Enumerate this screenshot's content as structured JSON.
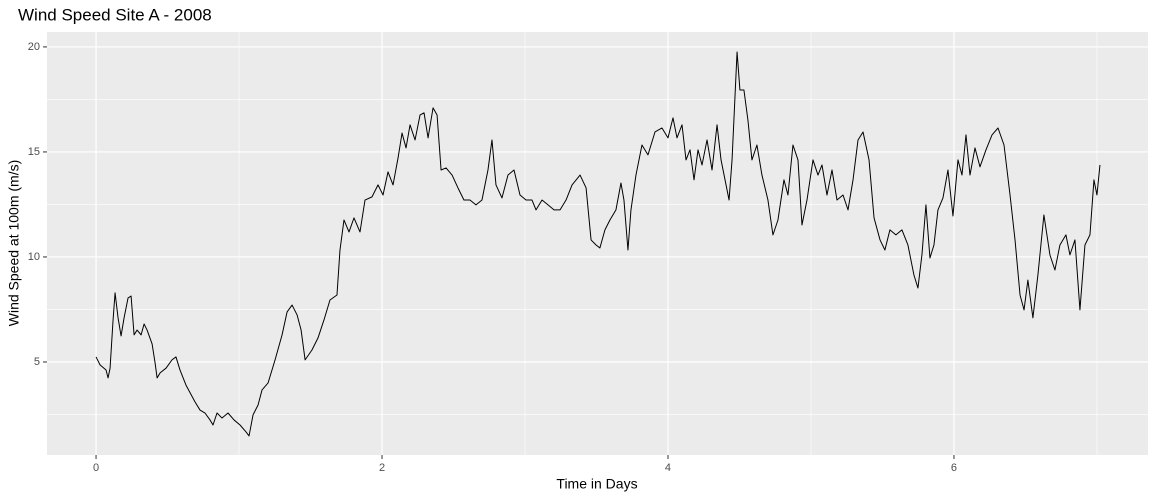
{
  "chart_data": {
    "type": "line",
    "title": "Wind Speed Site A - 2008",
    "x_label": "Time in Days",
    "y_label": "Wind Speed at 100m (m/s)",
    "color": "#000000",
    "grid": true,
    "xlim": [
      -0.343,
      7.357
    ],
    "ylim": [
      0.571,
      20.71
    ],
    "xticks": [
      0,
      2,
      4,
      6
    ],
    "yticks": [
      5,
      10,
      15,
      20
    ],
    "x": [
      0,
      0.028,
      0.07,
      0.084,
      0.098,
      0.119,
      0.133,
      0.154,
      0.175,
      0.196,
      0.224,
      0.245,
      0.266,
      0.287,
      0.315,
      0.336,
      0.357,
      0.392,
      0.413,
      0.427,
      0.448,
      0.49,
      0.531,
      0.559,
      0.587,
      0.629,
      0.692,
      0.727,
      0.762,
      0.797,
      0.818,
      0.846,
      0.881,
      0.923,
      0.965,
      1.007,
      1.049,
      1.07,
      1.098,
      1.133,
      1.161,
      1.203,
      1.252,
      1.301,
      1.336,
      1.371,
      1.406,
      1.434,
      1.462,
      1.51,
      1.552,
      1.594,
      1.636,
      1.685,
      1.706,
      1.734,
      1.769,
      1.804,
      1.846,
      1.881,
      1.93,
      1.972,
      2.007,
      2.042,
      2.077,
      2.112,
      2.14,
      2.168,
      2.196,
      2.231,
      2.266,
      2.294,
      2.322,
      2.357,
      2.385,
      2.413,
      2.448,
      2.49,
      2.531,
      2.573,
      2.615,
      2.657,
      2.699,
      2.741,
      2.769,
      2.797,
      2.839,
      2.881,
      2.923,
      2.965,
      3.007,
      3.049,
      3.077,
      3.119,
      3.161,
      3.203,
      3.245,
      3.287,
      3.329,
      3.385,
      3.427,
      3.462,
      3.497,
      3.524,
      3.559,
      3.594,
      3.636,
      3.671,
      3.692,
      3.72,
      3.741,
      3.776,
      3.818,
      3.86,
      3.909,
      3.958,
      4.0,
      4.035,
      4.063,
      4.098,
      4.126,
      4.154,
      4.182,
      4.21,
      4.238,
      4.273,
      4.308,
      4.343,
      4.371,
      4.399,
      4.427,
      4.448,
      4.483,
      4.503,
      4.531,
      4.559,
      4.587,
      4.622,
      4.657,
      4.699,
      4.734,
      4.769,
      4.811,
      4.839,
      4.874,
      4.909,
      4.937,
      4.972,
      5.014,
      5.049,
      5.077,
      5.112,
      5.147,
      5.182,
      5.224,
      5.259,
      5.294,
      5.329,
      5.364,
      5.406,
      5.441,
      5.483,
      5.517,
      5.552,
      5.594,
      5.636,
      5.678,
      5.72,
      5.748,
      5.776,
      5.804,
      5.832,
      5.86,
      5.888,
      5.923,
      5.958,
      5.993,
      6.028,
      6.056,
      6.084,
      6.112,
      6.147,
      6.182,
      6.224,
      6.266,
      6.308,
      6.35,
      6.392,
      6.427,
      6.462,
      6.49,
      6.517,
      6.552,
      6.587,
      6.629,
      6.671,
      6.706,
      6.741,
      6.783,
      6.811,
      6.846,
      6.881,
      6.916,
      6.951,
      6.979,
      7.0,
      7.021
    ],
    "values": [
      5.24,
      4.86,
      4.62,
      4.24,
      4.7,
      7.0,
      8.29,
      7.1,
      6.24,
      7.1,
      8.05,
      8.14,
      6.29,
      6.52,
      6.29,
      6.81,
      6.52,
      5.86,
      4.95,
      4.24,
      4.48,
      4.71,
      5.1,
      5.24,
      4.62,
      3.9,
      3.1,
      2.71,
      2.57,
      2.24,
      2.0,
      2.57,
      2.33,
      2.57,
      2.24,
      2.0,
      1.67,
      1.48,
      2.48,
      2.95,
      3.67,
      4.0,
      5.1,
      6.29,
      7.38,
      7.71,
      7.24,
      6.52,
      5.1,
      5.57,
      6.14,
      7.0,
      7.95,
      8.19,
      10.33,
      11.76,
      11.19,
      11.86,
      11.19,
      12.71,
      12.86,
      13.43,
      12.95,
      14.05,
      13.43,
      14.71,
      15.9,
      15.19,
      16.29,
      15.57,
      16.76,
      16.86,
      15.67,
      17.1,
      16.76,
      14.14,
      14.24,
      13.9,
      13.29,
      12.71,
      12.71,
      12.48,
      12.71,
      14.14,
      15.57,
      13.43,
      12.81,
      13.9,
      14.14,
      12.95,
      12.71,
      12.71,
      12.24,
      12.71,
      12.48,
      12.24,
      12.24,
      12.71,
      13.43,
      13.9,
      13.29,
      10.81,
      10.57,
      10.43,
      11.29,
      11.76,
      12.24,
      13.52,
      12.71,
      10.33,
      12.24,
      13.9,
      15.33,
      14.86,
      15.95,
      16.14,
      15.67,
      16.62,
      15.67,
      16.29,
      14.62,
      15.1,
      13.67,
      15.1,
      14.38,
      15.57,
      14.14,
      16.29,
      14.62,
      13.67,
      12.71,
      14.62,
      19.76,
      17.95,
      17.95,
      16.52,
      14.62,
      15.33,
      13.9,
      12.71,
      11.05,
      11.76,
      13.67,
      12.95,
      15.33,
      14.62,
      11.52,
      12.71,
      14.62,
      13.9,
      14.38,
      12.95,
      14.14,
      12.71,
      12.95,
      12.24,
      13.67,
      15.57,
      15.95,
      14.62,
      11.86,
      10.81,
      10.33,
      11.29,
      11.05,
      11.29,
      10.57,
      9.14,
      8.52,
      10.1,
      12.48,
      9.95,
      10.57,
      12.24,
      12.81,
      14.14,
      11.95,
      14.62,
      13.9,
      15.81,
      13.9,
      15.19,
      14.29,
      15.1,
      15.81,
      16.14,
      15.33,
      12.95,
      10.81,
      8.19,
      7.48,
      8.9,
      7.1,
      9.14,
      12.0,
      10.1,
      9.38,
      10.57,
      11.05,
      10.1,
      10.81,
      7.48,
      10.57,
      11.05,
      13.67,
      12.95,
      14.38
    ]
  }
}
